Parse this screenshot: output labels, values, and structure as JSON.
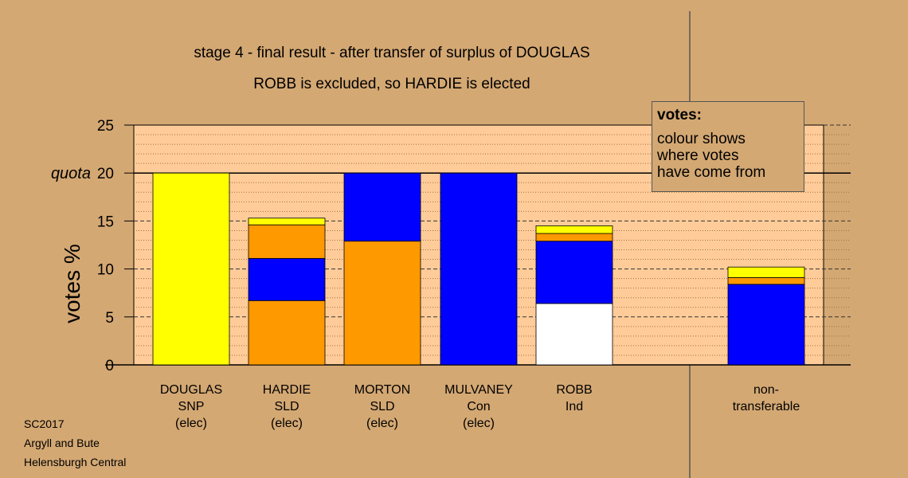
{
  "chart_data": {
    "type": "bar",
    "stacked": true,
    "title_lines": [
      "stage 4 - final result - after transfer of surplus of DOUGLAS",
      "ROBB is excluded, so HARDIE is elected"
    ],
    "ylabel": "votes %",
    "ylim": [
      0,
      25
    ],
    "yticks": [
      "0",
      "5",
      "10",
      "15",
      "20",
      "25"
    ],
    "quota_value": 20,
    "quota_label": "quota",
    "colors": {
      "yellow": "#ffff00",
      "orange": "#ff9900",
      "blue": "#0000ff",
      "white": "#ffffff",
      "plot_bg": "#ffcc99"
    },
    "bars": [
      {
        "label": [
          "DOUGLAS",
          "SNP",
          "(elec)"
        ],
        "segments": [
          {
            "color": "yellow",
            "value": 20.0
          }
        ]
      },
      {
        "label": [
          "HARDIE",
          "SLD",
          "(elec)"
        ],
        "segments": [
          {
            "color": "orange",
            "value": 6.7
          },
          {
            "color": "blue",
            "value": 4.4
          },
          {
            "color": "orange",
            "value": 3.5
          },
          {
            "color": "yellow",
            "value": 0.7
          }
        ]
      },
      {
        "label": [
          "MORTON",
          "SLD",
          "(elec)"
        ],
        "segments": [
          {
            "color": "orange",
            "value": 12.9
          },
          {
            "color": "blue",
            "value": 7.1
          }
        ]
      },
      {
        "label": [
          "MULVANEY",
          "Con",
          "(elec)"
        ],
        "segments": [
          {
            "color": "blue",
            "value": 20.0
          }
        ]
      },
      {
        "label": [
          "ROBB",
          "Ind"
        ],
        "segments": [
          {
            "color": "white",
            "value": 6.4
          },
          {
            "color": "blue",
            "value": 6.5
          },
          {
            "color": "orange",
            "value": 0.8
          },
          {
            "color": "yellow",
            "value": 0.8
          }
        ]
      },
      {
        "label": [
          "non-",
          "transferable"
        ],
        "segments": [
          {
            "color": "blue",
            "value": 8.4
          },
          {
            "color": "orange",
            "value": 0.7
          },
          {
            "color": "yellow",
            "value": 1.1
          }
        ]
      }
    ]
  },
  "legend": {
    "title": "votes:",
    "lines": [
      "colour shows",
      "where votes",
      "have come from"
    ]
  },
  "footer": {
    "lines": [
      "SC2017",
      "Argyll and Bute",
      "Helensburgh Central"
    ]
  }
}
